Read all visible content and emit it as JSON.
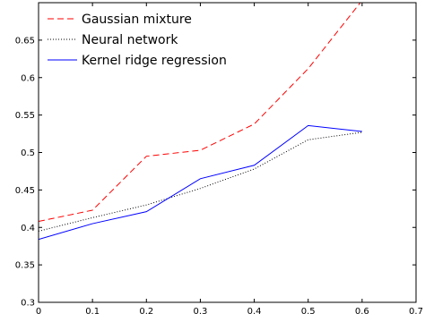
{
  "chart_data": {
    "type": "line",
    "title": "",
    "xlabel": "",
    "ylabel": "",
    "xlim": [
      0,
      0.7
    ],
    "ylim": [
      0.3,
      0.7
    ],
    "xticks": [
      0,
      0.1,
      0.2,
      0.3,
      0.4,
      0.5,
      0.6,
      0.7
    ],
    "xtick_labels": [
      "0",
      "0.1",
      "0.2",
      "0.3",
      "0.4",
      "0.5",
      "0.6",
      "0.7"
    ],
    "yticks": [
      0.3,
      0.35,
      0.4,
      0.45,
      0.5,
      0.55,
      0.6,
      0.65
    ],
    "ytick_labels": [
      "0.3",
      "0.35",
      "0.4",
      "0.45",
      "0.5",
      "0.55",
      "0.6",
      "0.65"
    ],
    "grid": false,
    "legend_position": "top-left",
    "series": [
      {
        "name": "Gaussian mixture",
        "color": "#ff0000",
        "style": "dashed",
        "x": [
          0,
          0.1,
          0.2,
          0.3,
          0.4,
          0.5,
          0.6
        ],
        "y": [
          0.408,
          0.423,
          0.495,
          0.503,
          0.538,
          0.612,
          0.703
        ]
      },
      {
        "name": "Neural network",
        "color": "#000000",
        "style": "dotted",
        "x": [
          0,
          0.1,
          0.2,
          0.3,
          0.4,
          0.5,
          0.6
        ],
        "y": [
          0.395,
          0.413,
          0.43,
          0.452,
          0.478,
          0.517,
          0.527
        ]
      },
      {
        "name": "Kernel ridge regression",
        "color": "#0000ff",
        "style": "solid",
        "x": [
          0,
          0.1,
          0.2,
          0.3,
          0.4,
          0.5,
          0.6
        ],
        "y": [
          0.384,
          0.405,
          0.421,
          0.465,
          0.483,
          0.536,
          0.528
        ]
      }
    ]
  }
}
